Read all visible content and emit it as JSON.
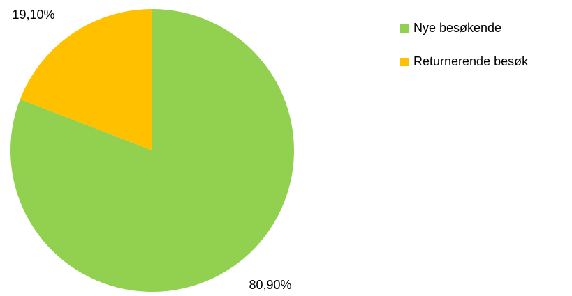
{
  "chart_data": {
    "type": "pie",
    "categories": [
      "Nye besøkende",
      "Returnerende besøk"
    ],
    "values": [
      80.9,
      19.1
    ],
    "value_labels": [
      "80,90%",
      "19,10%"
    ],
    "colors": [
      "#92d050",
      "#ffc000"
    ],
    "legend": "right"
  }
}
